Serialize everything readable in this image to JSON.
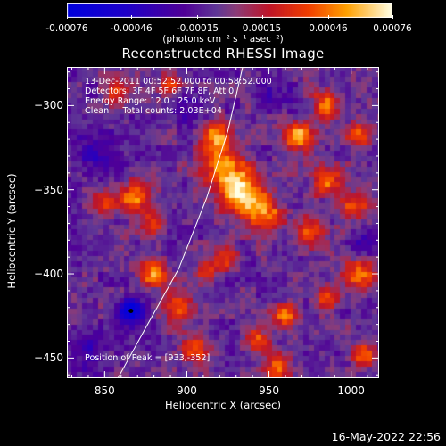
{
  "colorbar": {
    "ticks": [
      "-0.00076",
      "-0.00046",
      "-0.00015",
      "0.00015",
      "0.00046",
      "0.00076"
    ],
    "tick_values": [
      -0.00076,
      -0.00046,
      -0.00015,
      0.00015,
      0.00046,
      0.00076
    ],
    "unit_label": "(photons cm⁻² s⁻¹ asec⁻²)"
  },
  "chart_data": {
    "type": "heatmap",
    "title": "Reconstructed RHESSI Image",
    "xlabel": "Heliocentric X (arcsec)",
    "ylabel": "Heliocentric Y (arcsec)",
    "xlim": [
      827,
      1017
    ],
    "ylim": [
      -462,
      -277
    ],
    "xticks": [
      850,
      900,
      950,
      1000
    ],
    "yticks": [
      -300,
      -350,
      -400,
      -450
    ],
    "value_range": [
      -0.00076,
      0.00076
    ],
    "annotations": [
      "13-Dec-2011 00:52:52.000 to 00:58:52.000",
      "Detectors: 3F 4F 5F 6F 7F 8F, Att 0",
      "Energy Range: 12.0 - 25.0 keV",
      "Clean     Total counts: 2.03E+04"
    ],
    "peak_label": "Position of Peak = [933,-352]",
    "peak": [
      933,
      -352
    ],
    "sources": [
      {
        "x": 933,
        "y": -352,
        "amp": 1.0,
        "sigma": 9
      },
      {
        "x": 922,
        "y": -335,
        "amp": 0.75,
        "sigma": 8
      },
      {
        "x": 918,
        "y": -318,
        "amp": 0.65,
        "sigma": 6
      },
      {
        "x": 948,
        "y": -365,
        "amp": 0.7,
        "sigma": 7
      },
      {
        "x": 968,
        "y": -318,
        "amp": 0.75,
        "sigma": 6
      },
      {
        "x": 985,
        "y": -300,
        "amp": 0.65,
        "sigma": 6
      },
      {
        "x": 1005,
        "y": -318,
        "amp": 0.6,
        "sigma": 5
      },
      {
        "x": 985,
        "y": -345,
        "amp": 0.7,
        "sigma": 6
      },
      {
        "x": 1003,
        "y": -360,
        "amp": 0.55,
        "sigma": 6
      },
      {
        "x": 975,
        "y": -375,
        "amp": 0.6,
        "sigma": 6
      },
      {
        "x": 1005,
        "y": -400,
        "amp": 0.7,
        "sigma": 6
      },
      {
        "x": 985,
        "y": -415,
        "amp": 0.5,
        "sigma": 5
      },
      {
        "x": 960,
        "y": -425,
        "amp": 0.65,
        "sigma": 5
      },
      {
        "x": 942,
        "y": -440,
        "amp": 0.5,
        "sigma": 5
      },
      {
        "x": 955,
        "y": -455,
        "amp": 0.55,
        "sigma": 6
      },
      {
        "x": 1008,
        "y": -448,
        "amp": 0.6,
        "sigma": 5
      },
      {
        "x": 868,
        "y": -355,
        "amp": 0.7,
        "sigma": 6
      },
      {
        "x": 880,
        "y": -370,
        "amp": 0.55,
        "sigma": 5
      },
      {
        "x": 850,
        "y": -358,
        "amp": 0.5,
        "sigma": 5
      },
      {
        "x": 880,
        "y": -400,
        "amp": 0.65,
        "sigma": 6
      },
      {
        "x": 895,
        "y": -420,
        "amp": 0.55,
        "sigma": 6
      },
      {
        "x": 905,
        "y": -445,
        "amp": 0.6,
        "sigma": 6
      },
      {
        "x": 912,
        "y": -398,
        "amp": 0.5,
        "sigma": 5
      },
      {
        "x": 925,
        "y": -390,
        "amp": 0.55,
        "sigma": 5
      },
      {
        "x": 858,
        "y": -292,
        "amp": 0.45,
        "sigma": 5
      },
      {
        "x": 890,
        "y": -288,
        "amp": 0.45,
        "sigma": 5
      },
      {
        "x": 866,
        "y": -422,
        "amp": -0.75,
        "sigma": 6
      },
      {
        "x": 845,
        "y": -330,
        "amp": -0.3,
        "sigma": 10
      },
      {
        "x": 900,
        "y": -300,
        "amp": -0.25,
        "sigma": 8
      },
      {
        "x": 955,
        "y": -295,
        "amp": -0.25,
        "sigma": 7
      },
      {
        "x": 1010,
        "y": -380,
        "amp": -0.25,
        "sigma": 6
      },
      {
        "x": 840,
        "y": -445,
        "amp": -0.3,
        "sigma": 9
      }
    ],
    "limb_arc": {
      "x": [
        858,
        875,
        895,
        912,
        925,
        934
      ],
      "y": [
        -462,
        -432,
        -397,
        -355,
        -315,
        -277
      ]
    },
    "dark_marker": [
      866,
      -422
    ]
  },
  "datestamp": "16-May-2022 22:56"
}
